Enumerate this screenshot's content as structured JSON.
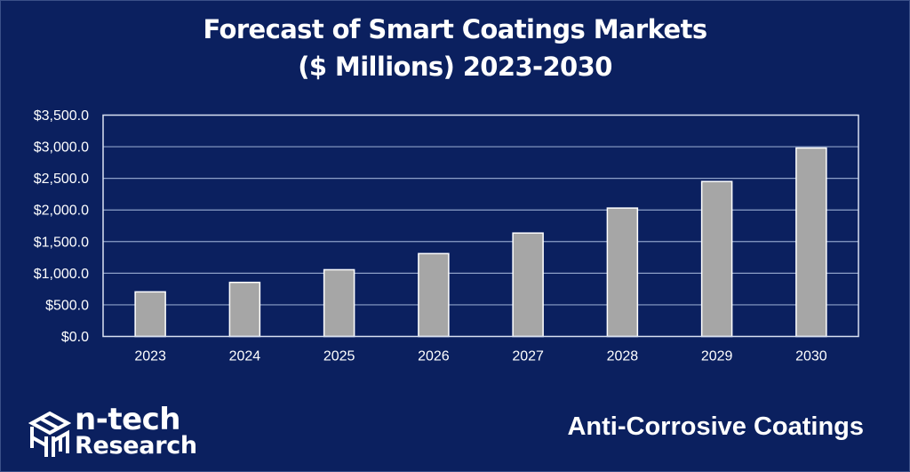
{
  "chart_data": {
    "type": "bar",
    "title": "Forecast of Smart Coatings Markets",
    "title_line2": "($ Millions) 2023-2030",
    "xlabel": "",
    "ylabel": "",
    "categories": [
      "2023",
      "2024",
      "2025",
      "2026",
      "2027",
      "2028",
      "2029",
      "2030"
    ],
    "values": [
      705,
      855,
      1055,
      1310,
      1635,
      2030,
      2450,
      2980
    ],
    "ylim": [
      0,
      3500
    ],
    "yticks": [
      0,
      500,
      1000,
      1500,
      2000,
      2500,
      3000,
      3500
    ],
    "ytick_labels": [
      "$0.0",
      "$500.0",
      "$1,000.0",
      "$1,500.0",
      "$2,000.0",
      "$2,500.0",
      "$3,000.0",
      "$3,500.0"
    ],
    "grid": true,
    "legend": "none",
    "series_name": "Anti-Corrosive Coatings",
    "colors": {
      "background": "#0b205f",
      "bar_fill": "#a6a6a6",
      "bar_border": "#ffffff",
      "gridline": "#8da0c8",
      "axis": "#d9e1f2",
      "text": "#ffffff"
    }
  },
  "brand": {
    "name_line1": "n-tech",
    "name_line2": "Research",
    "logo_icon": "cube-logo-icon"
  },
  "segment_label": "Anti-Corrosive Coatings"
}
